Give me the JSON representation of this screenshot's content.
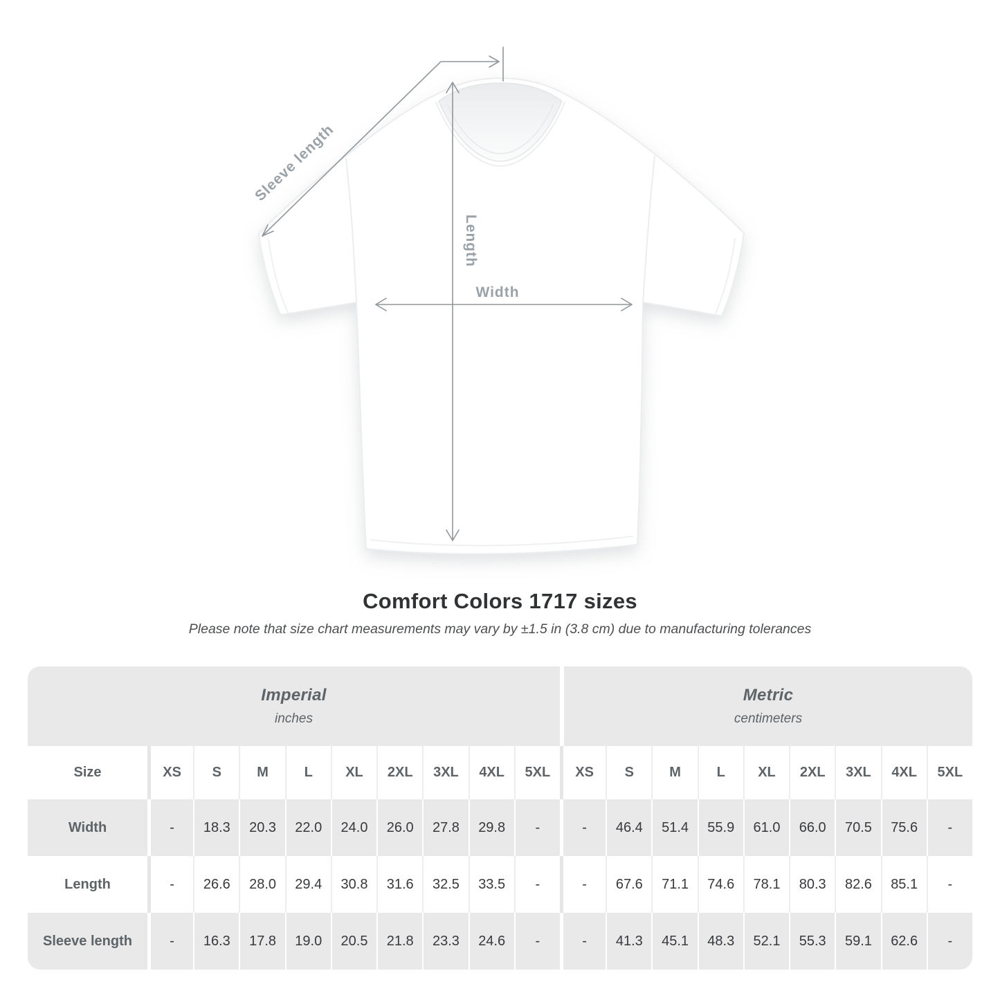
{
  "figure": {
    "labels": {
      "sleeve_length": "Sleeve length",
      "length": "Length",
      "width": "Width"
    }
  },
  "heading": {
    "title": "Comfort Colors 1717 sizes",
    "note": "Please note that size chart measurements may vary by ±1.5 in (3.8 cm) due to manufacturing tolerances"
  },
  "table": {
    "unit_groups": [
      {
        "name": "Imperial",
        "unit": "inches"
      },
      {
        "name": "Metric",
        "unit": "centimeters"
      }
    ],
    "size_label": "Size",
    "sizes": [
      "XS",
      "S",
      "M",
      "L",
      "XL",
      "2XL",
      "3XL",
      "4XL",
      "5XL"
    ],
    "rows": [
      {
        "label": "Width",
        "imperial": [
          "-",
          "18.3",
          "20.3",
          "22.0",
          "24.0",
          "26.0",
          "27.8",
          "29.8",
          "-"
        ],
        "metric": [
          "-",
          "46.4",
          "51.4",
          "55.9",
          "61.0",
          "66.0",
          "70.5",
          "75.6",
          "-"
        ]
      },
      {
        "label": "Length",
        "imperial": [
          "-",
          "26.6",
          "28.0",
          "29.4",
          "30.8",
          "31.6",
          "32.5",
          "33.5",
          "-"
        ],
        "metric": [
          "-",
          "67.6",
          "71.1",
          "74.6",
          "78.1",
          "80.3",
          "82.6",
          "85.1",
          "-"
        ]
      },
      {
        "label": "Sleeve length",
        "imperial": [
          "-",
          "16.3",
          "17.8",
          "19.0",
          "20.5",
          "21.8",
          "23.3",
          "24.6",
          "-"
        ],
        "metric": [
          "-",
          "41.3",
          "45.1",
          "48.3",
          "52.1",
          "55.3",
          "59.1",
          "62.6",
          "-"
        ]
      }
    ]
  },
  "colors": {
    "band_gray": "#e9e9ea",
    "value_text": "#37393c",
    "muted_text": "#5d6367",
    "dimension_line": "#8f969b",
    "dimension_label": "#9aa1a7",
    "title_text": "#303234"
  }
}
